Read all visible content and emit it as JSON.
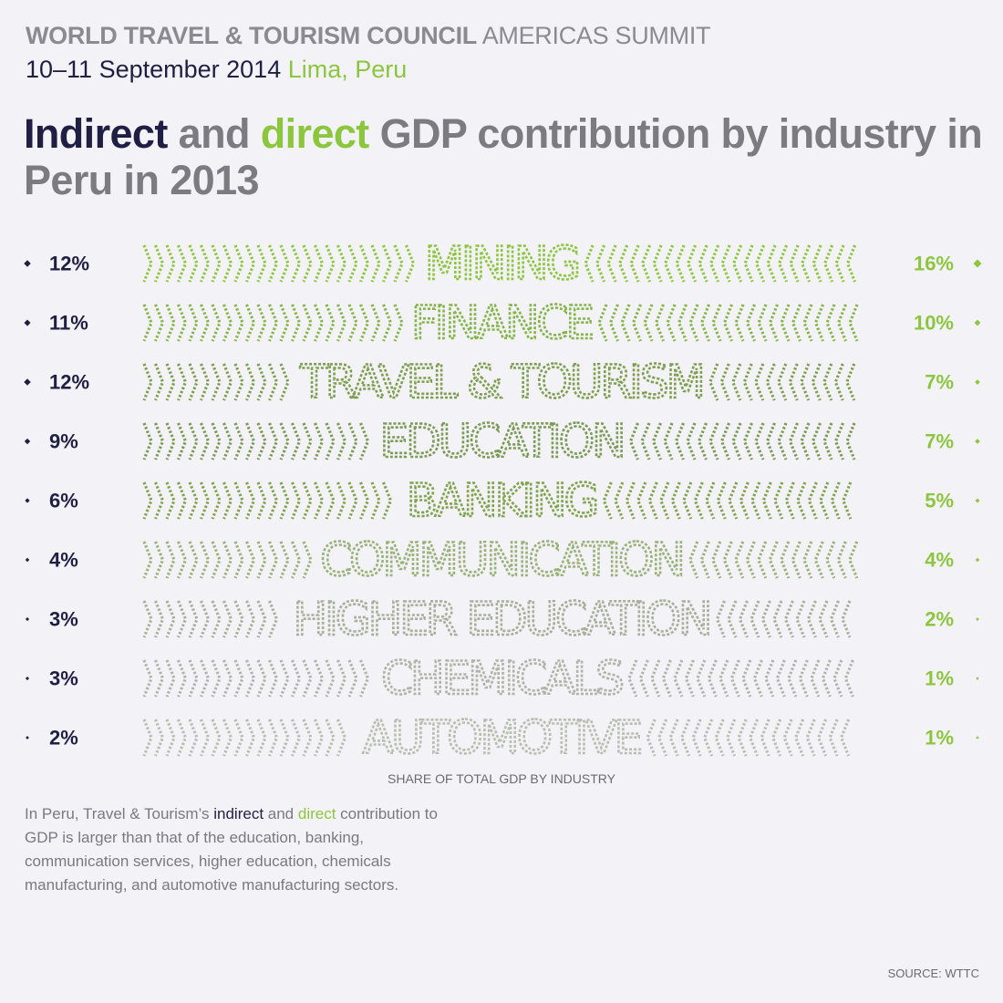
{
  "header": {
    "org_bold": "WORLD TRAVEL & TOURISM COUNCIL",
    "event": "AMERICAS SUMMIT",
    "dates": "10–11 September 2014",
    "location": "Lima, Peru"
  },
  "title": {
    "part1": "Indirect",
    "part2": " and ",
    "part3": "direct",
    "part4": " GDP contribution by industry in Peru in 2013"
  },
  "colors": {
    "indirect": "#1f1f44",
    "direct": "#8cc63f",
    "gray_text": "#7c7b82",
    "background": "#f3f2f6"
  },
  "chart_data": {
    "type": "bar",
    "categories": [
      "MINING",
      "FINANCE",
      "TRAVEL & TOURISM",
      "EDUCATION",
      "BANKING",
      "COMMUNICATION",
      "HIGHER EDUCATION",
      "CHEMICALS",
      "AUTOMOTIVE"
    ],
    "series": [
      {
        "name": "indirect",
        "values": [
          12,
          11,
          12,
          9,
          6,
          4,
          3,
          3,
          2
        ],
        "labels": [
          "12%",
          "11%",
          "12%",
          "9%",
          "6%",
          "4%",
          "3%",
          "3%",
          "2%"
        ]
      },
      {
        "name": "direct",
        "values": [
          16,
          10,
          7,
          7,
          5,
          4,
          2,
          1,
          1
        ],
        "labels": [
          "16%",
          "10%",
          "7%",
          "7%",
          "5%",
          "4%",
          "2%",
          "1%",
          "1%"
        ]
      }
    ],
    "bar_colors": [
      "#8cc63f",
      "#85b54a",
      "#7f9f50",
      "#7b9a55",
      "#81a34e",
      "#9ab27a",
      "#a9ae9a",
      "#b0b3a8",
      "#b9bdb0"
    ],
    "xlabel": "SHARE OF TOTAL GDP BY INDUSTRY"
  },
  "description": {
    "p1": "In Peru, Travel & Tourism’s ",
    "ind": "indirect",
    "p2": " and ",
    "dir": "direct",
    "p3": " contribution to GDP is larger than that of the education, banking, communication services, higher education, chemicals manufacturing, and automotive manufacturing sectors."
  },
  "source": "SOURCE: WTTC"
}
